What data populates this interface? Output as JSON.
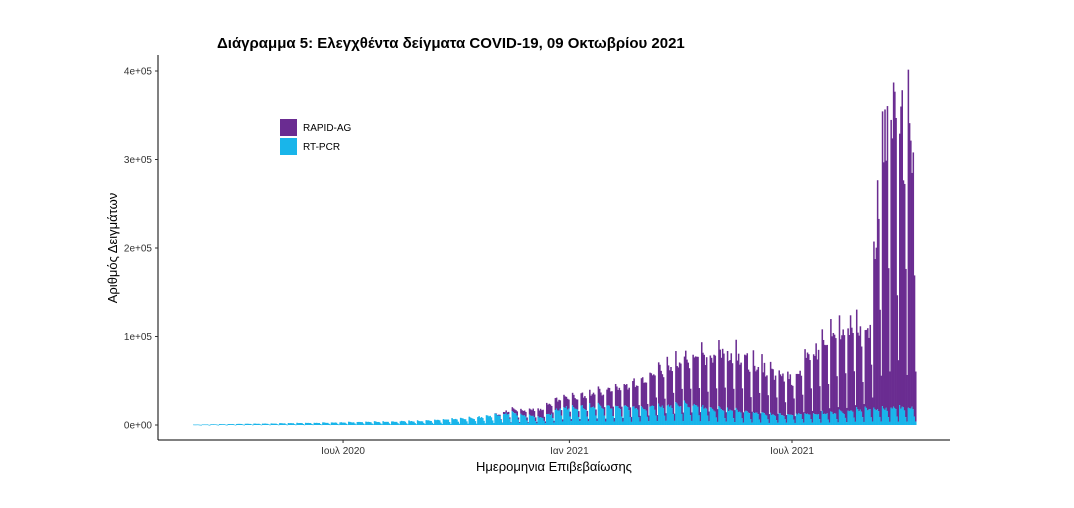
{
  "chart_data": {
    "type": "bar",
    "stacked": true,
    "title": "Διάγραμμα 5: Ελεγχθέντα δείγματα COVID-19, 09 Οκτωβρίου 2021",
    "xlabel": "Ημερομηνια Επιβεβαίωσης",
    "ylabel": "Αριθμός Δειγμάτων",
    "x_range": [
      "2020-03-01",
      "2021-10-09"
    ],
    "x_ticks": [
      {
        "label": "Ιουλ 2020",
        "date": "2020-07-01"
      },
      {
        "label": "Ιαν 2021",
        "date": "2021-01-01"
      },
      {
        "label": "Ιουλ 2021",
        "date": "2021-07-01"
      }
    ],
    "ylim": [
      0,
      400000
    ],
    "y_ticks": [
      {
        "label": "0e+00",
        "value": 0
      },
      {
        "label": "1e+05",
        "value": 100000
      },
      {
        "label": "2e+05",
        "value": 200000
      },
      {
        "label": "3e+05",
        "value": 300000
      },
      {
        "label": "4e+05",
        "value": 400000
      }
    ],
    "grid": false,
    "legend_position": "top-left",
    "series": [
      {
        "name": "RAPID-AG",
        "color": "#6a2c91",
        "weekly_peak_profile": [
          {
            "date": "2020-03-01",
            "peak": 0
          },
          {
            "date": "2020-10-31",
            "peak": 0
          },
          {
            "date": "2020-11-15",
            "peak": 4000
          },
          {
            "date": "2020-12-15",
            "peak": 12000
          },
          {
            "date": "2021-01-15",
            "peak": 15000
          },
          {
            "date": "2021-02-15",
            "peak": 25000
          },
          {
            "date": "2021-03-15",
            "peak": 45000
          },
          {
            "date": "2021-04-10",
            "peak": 60000
          },
          {
            "date": "2021-05-01",
            "peak": 70000
          },
          {
            "date": "2021-05-20",
            "peak": 68000
          },
          {
            "date": "2021-06-15",
            "peak": 52000
          },
          {
            "date": "2021-07-01",
            "peak": 45000
          },
          {
            "date": "2021-07-20",
            "peak": 80000
          },
          {
            "date": "2021-08-15",
            "peak": 105000
          },
          {
            "date": "2021-09-01",
            "peak": 100000
          },
          {
            "date": "2021-09-08",
            "peak": 260000
          },
          {
            "date": "2021-09-15",
            "peak": 370000
          },
          {
            "date": "2021-10-09",
            "peak": 330000
          }
        ]
      },
      {
        "name": "RT-PCR",
        "color": "#19b5ea",
        "weekly_peak_profile": [
          {
            "date": "2020-03-01",
            "peak": 500
          },
          {
            "date": "2020-06-01",
            "peak": 2500
          },
          {
            "date": "2020-09-01",
            "peak": 5000
          },
          {
            "date": "2020-10-15",
            "peak": 9000
          },
          {
            "date": "2020-11-15",
            "peak": 15000
          },
          {
            "date": "2020-12-10",
            "peak": 9000
          },
          {
            "date": "2020-12-25",
            "peak": 22000
          },
          {
            "date": "2021-02-01",
            "peak": 23000
          },
          {
            "date": "2021-03-01",
            "peak": 21000
          },
          {
            "date": "2021-04-01",
            "peak": 26000
          },
          {
            "date": "2021-05-01",
            "peak": 20000
          },
          {
            "date": "2021-06-15",
            "peak": 13000
          },
          {
            "date": "2021-08-01",
            "peak": 15000
          },
          {
            "date": "2021-09-01",
            "peak": 20000
          },
          {
            "date": "2021-10-09",
            "peak": 22000
          }
        ]
      }
    ]
  }
}
